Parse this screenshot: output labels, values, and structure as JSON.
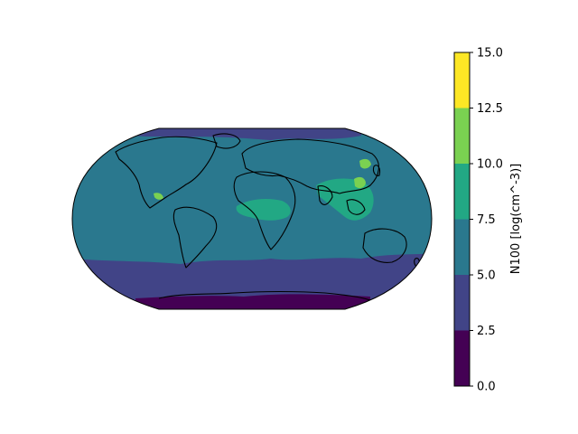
{
  "map": {
    "projection": "Robinson",
    "field": "N100",
    "colors": {
      "level_0_2_5": "#440154",
      "level_2_5_5": "#414487",
      "level_5_7_5": "#2a788e",
      "level_7_5_10": "#22a884",
      "level_10_12_5": "#7ad151",
      "level_12_5_15": "#fde725",
      "coastline": "#000000",
      "outline": "#000000"
    }
  },
  "colorbar": {
    "label": "N100 [log(cm^-3)]",
    "levels": [
      0.0,
      2.5,
      5.0,
      7.5,
      10.0,
      12.5,
      15.0
    ],
    "tick_labels": [
      "0.0",
      "2.5",
      "5.0",
      "7.5",
      "10.0",
      "12.5",
      "15.0"
    ],
    "colors": [
      "#440154",
      "#414487",
      "#2a788e",
      "#22a884",
      "#7ad151",
      "#fde725"
    ]
  }
}
